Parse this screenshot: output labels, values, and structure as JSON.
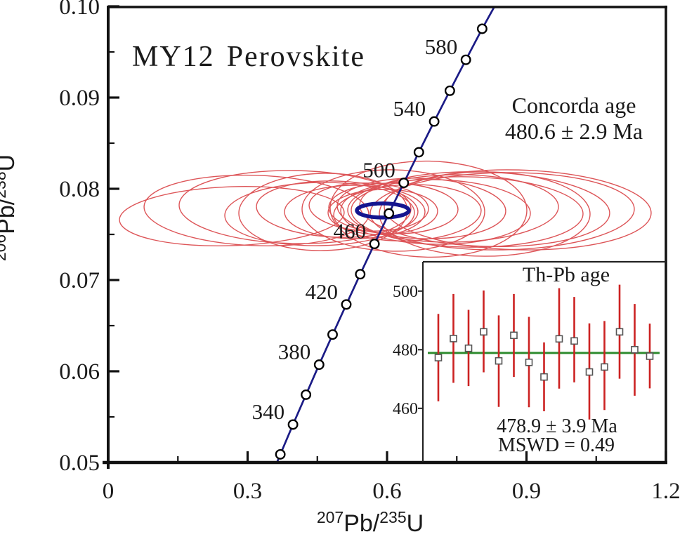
{
  "colors": {
    "error_ellipse_red": "#dd5558",
    "concordia_line_blue": "#1b1b86",
    "concordia_age_ellipse_blue": "#15158f",
    "errorbar_red": "#cc2222",
    "mean_line_green": "#2e8b2e",
    "axis_black": "#111111",
    "marker_fill": "#ffffff"
  },
  "chart_data": [
    {
      "id": "concordia-plot",
      "type": "scatter",
      "title_part1": "MY12",
      "title_part2": "Perovskite",
      "xlabel": {
        "sup1": "207",
        "base1": "Pb/",
        "sup2": "235",
        "base2": "U"
      },
      "ylabel": {
        "sup1": "206",
        "base1": "Pb/",
        "sup2": "238",
        "base2": "U"
      },
      "xlim": [
        0,
        1.2
      ],
      "ylim": [
        0.05,
        0.1
      ],
      "x_ticks": [
        {
          "v": 0,
          "label": "0"
        },
        {
          "v": 0.3,
          "label": "0.3"
        },
        {
          "v": 0.6,
          "label": "0.6"
        },
        {
          "v": 0.9,
          "label": "0.9"
        },
        {
          "v": 1.2,
          "label": "1.2"
        }
      ],
      "x_minor_ticks": [
        0.15,
        0.45,
        0.75,
        1.05
      ],
      "y_ticks": [
        {
          "v": 0.05,
          "label": "0.05"
        },
        {
          "v": 0.06,
          "label": "0.06"
        },
        {
          "v": 0.07,
          "label": "0.07"
        },
        {
          "v": 0.08,
          "label": "0.08"
        },
        {
          "v": 0.09,
          "label": "0.09"
        },
        {
          "v": 0.1,
          "label": "0.10"
        }
      ],
      "y_minor_ticks": [
        0.055,
        0.065,
        0.075,
        0.085,
        0.095
      ],
      "grid": false,
      "annotation": {
        "line1": "Concorda age",
        "line2": "480.6 ± 2.9 Ma"
      },
      "concordia_curve": {
        "points": [
          [
            300,
            0.3437,
            0.04764
          ],
          [
            320,
            0.3705,
            0.05089
          ],
          [
            340,
            0.3977,
            0.05416
          ],
          [
            360,
            0.4256,
            0.05743
          ],
          [
            380,
            0.4539,
            0.06072
          ],
          [
            400,
            0.4828,
            0.06402
          ],
          [
            420,
            0.5123,
            0.06732
          ],
          [
            440,
            0.5423,
            0.07064
          ],
          [
            460,
            0.5729,
            0.07396
          ],
          [
            480,
            0.6041,
            0.0773
          ],
          [
            500,
            0.636,
            0.08065
          ],
          [
            520,
            0.6684,
            0.08401
          ],
          [
            540,
            0.7014,
            0.08738
          ],
          [
            560,
            0.7351,
            0.09075
          ],
          [
            580,
            0.7695,
            0.09414
          ],
          [
            600,
            0.8046,
            0.09754
          ],
          [
            620,
            0.8416,
            0.10095
          ]
        ],
        "marker_ages": [
          320,
          340,
          360,
          380,
          400,
          420,
          440,
          460,
          480,
          500,
          520,
          540,
          560,
          580,
          600
        ],
        "labeled_ages": [
          340,
          380,
          420,
          460,
          500,
          540,
          580
        ]
      },
      "concordia_age_ellipse": {
        "cx": 0.591,
        "cy": 0.07762,
        "rx": 0.0559,
        "ry": 0.00077
      },
      "error_ellipses": [
        [
          0.266,
          0.077,
          0.2418,
          0.00323,
          -2
        ],
        [
          0.3189,
          0.07762,
          0.2418,
          0.00385,
          2
        ],
        [
          0.402,
          0.078,
          0.2494,
          0.004,
          1
        ],
        [
          0.4549,
          0.07723,
          0.204,
          0.00346,
          -1
        ],
        [
          0.4927,
          0.07777,
          0.1738,
          0.00308,
          2
        ],
        [
          0.5305,
          0.07746,
          0.1511,
          0.00292,
          0
        ],
        [
          0.5607,
          0.078,
          0.1285,
          0.00262,
          2
        ],
        [
          0.591,
          0.07746,
          0.1179,
          0.00246,
          -1
        ],
        [
          0.6136,
          0.07785,
          0.139,
          0.00277,
          1
        ],
        [
          0.6438,
          0.07738,
          0.1587,
          0.00308,
          -2
        ],
        [
          0.6741,
          0.07785,
          0.1814,
          0.00331,
          2
        ],
        [
          0.7043,
          0.07746,
          0.204,
          0.00354,
          1
        ],
        [
          0.7421,
          0.07785,
          0.2267,
          0.00369,
          -1
        ],
        [
          0.7723,
          0.07746,
          0.2494,
          0.00385,
          1
        ],
        [
          0.8101,
          0.07777,
          0.269,
          0.00408,
          2
        ],
        [
          0.8479,
          0.07754,
          0.2841,
          0.00423,
          -1
        ],
        [
          0.8811,
          0.07769,
          0.2872,
          0.00438,
          1.5
        ],
        [
          0.8101,
          0.07723,
          0.2267,
          0.00462,
          0
        ],
        [
          0.6136,
          0.07762,
          0.1965,
          0.00446,
          1
        ],
        [
          0.4625,
          0.07746,
          0.1814,
          0.00423,
          -1
        ],
        [
          0.6892,
          0.07777,
          0.2116,
          0.00526,
          1
        ]
      ]
    },
    {
      "id": "th-pb-inset",
      "type": "errorbar",
      "title": "Th-Pb age",
      "ylim": [
        442,
        510
      ],
      "y_ticks": [
        {
          "v": 460,
          "label": "460"
        },
        {
          "v": 480,
          "label": "480"
        },
        {
          "v": 500,
          "label": "500"
        }
      ],
      "mean_line": 478.9,
      "points": [
        {
          "v": 477.3,
          "hi": 492.2,
          "lo": 462.4
        },
        {
          "v": 483.8,
          "hi": 499.0,
          "lo": 468.7
        },
        {
          "v": 480.5,
          "hi": 493.6,
          "lo": 467.6
        },
        {
          "v": 486.1,
          "hi": 500.2,
          "lo": 472.3
        },
        {
          "v": 476.2,
          "hi": 491.7,
          "lo": 460.5
        },
        {
          "v": 484.9,
          "hi": 499.0,
          "lo": 470.7
        },
        {
          "v": 475.7,
          "hi": 491.2,
          "lo": 460.4
        },
        {
          "v": 470.7,
          "hi": 482.5,
          "lo": 459.0
        },
        {
          "v": 483.7,
          "hi": 501.0,
          "lo": 466.7
        },
        {
          "v": 483.0,
          "hi": 498.0,
          "lo": 468.9
        },
        {
          "v": 472.4,
          "hi": 489.0,
          "lo": 456.2
        },
        {
          "v": 474.1,
          "hi": 489.8,
          "lo": 459.4
        },
        {
          "v": 486.1,
          "hi": 502.2,
          "lo": 470.1
        },
        {
          "v": 480.0,
          "hi": 495.6,
          "lo": 464.3
        },
        {
          "v": 477.8,
          "hi": 488.9,
          "lo": 466.8
        }
      ],
      "result_line1": "478.9 ± 3.9 Ma",
      "result_line2": "MSWD = 0.49"
    }
  ]
}
